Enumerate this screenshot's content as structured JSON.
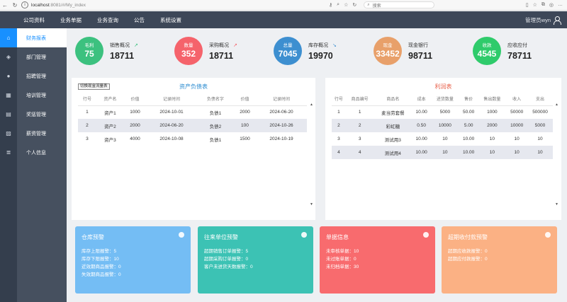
{
  "browser": {
    "url_host": "localhost",
    "url_rest": ":8081/#/My_index",
    "search_placeholder": "搜索"
  },
  "header": {
    "menu": [
      "公司资料",
      "业务单据",
      "业务查询",
      "公告",
      "系统设置"
    ],
    "user": "管理员wyn"
  },
  "sidebar": {
    "items": [
      "财务报表",
      "部门管理",
      "招聘管理",
      "培训管理",
      "奖惩管理",
      "薪资管理",
      "个人信息"
    ]
  },
  "stats": [
    {
      "circle_label": "毛利",
      "circle_value": "75",
      "title": "销售概况",
      "value": "18711",
      "arrow": "↗",
      "color": "#3cc17f",
      "arrow_color": "#3cc17f"
    },
    {
      "circle_label": "数量",
      "circle_value": "352",
      "title": "采购概况",
      "value": "18711",
      "arrow": "↗",
      "color": "#f5636b",
      "arrow_color": "#f5636b"
    },
    {
      "circle_label": "总量",
      "circle_value": "7045",
      "title": "库存概况",
      "value": "19970",
      "arrow": "↘",
      "color": "#3d8fd0",
      "arrow_color": "#3d8fd0"
    },
    {
      "circle_label": "现金",
      "circle_value": "33452",
      "title": "现金银行",
      "value": "98711",
      "arrow": "",
      "color": "#e8a06a",
      "arrow_color": "#e8a06a"
    },
    {
      "circle_label": "收款",
      "circle_value": "4545",
      "title": "应收应付",
      "value": "78711",
      "arrow": "",
      "color": "#2fcb6b",
      "arrow_color": "#2fcb6b"
    }
  ],
  "asset_panel": {
    "switch_label": "切换现金流量表",
    "title": "资产负债表",
    "columns": [
      "行号",
      "资产名",
      "价值",
      "记录时间",
      "负债名字",
      "价值",
      "记录时间"
    ],
    "rows": [
      [
        "1",
        "资产1",
        "1000",
        "2024-10-01",
        "负债1",
        "2000",
        "2024-06-20"
      ],
      [
        "2",
        "资产2",
        "2000",
        "2024-06-20",
        "负债2",
        "100",
        "2024-10-26"
      ],
      [
        "3",
        "资产3",
        "4000",
        "2024-10-08",
        "负债1",
        "1500",
        "2024-10-19"
      ]
    ]
  },
  "profit_panel": {
    "title": "利润表",
    "columns": [
      "行号",
      "商品编号",
      "商品名",
      "成本",
      "进货数量",
      "售价",
      "售出数量",
      "收入",
      "支出"
    ],
    "rows": [
      [
        "1",
        "1",
        "麦当劳套餐",
        "10.00",
        "5000",
        "50.00",
        "1000",
        "50000",
        "500000"
      ],
      [
        "2",
        "2",
        "彩虹糖",
        "0.50",
        "10000",
        "5.00",
        "2000",
        "10000",
        "5000"
      ],
      [
        "3",
        "3",
        "测试用3",
        "10.00",
        "10",
        "10.00",
        "10",
        "10",
        "10"
      ],
      [
        "4",
        "4",
        "测试用4",
        "10.00",
        "10",
        "10.00",
        "10",
        "10",
        "10"
      ]
    ]
  },
  "cards": [
    {
      "title": "仓库预警",
      "color": "#74bdf4",
      "lines": [
        "库存上限报警：5",
        "库存下限报警：10",
        "近效期商品报警：0",
        "失效期商品报警：0"
      ]
    },
    {
      "title": "往来单位预警",
      "color": "#3cc2b4",
      "lines": [
        "超期销售订单报警：5",
        "超期采购订单报警：0",
        "客户未进货天数报警：0"
      ]
    },
    {
      "title": "单据信息",
      "color": "#f86b6e",
      "lines": [
        "未审核单据：10",
        "未过账单据：0",
        "未归档单据：30"
      ]
    },
    {
      "title": "超期收付款预警",
      "color": "#fbb184",
      "lines": [
        "超期应收款报警：0",
        "超期应付款报警：0"
      ]
    }
  ]
}
